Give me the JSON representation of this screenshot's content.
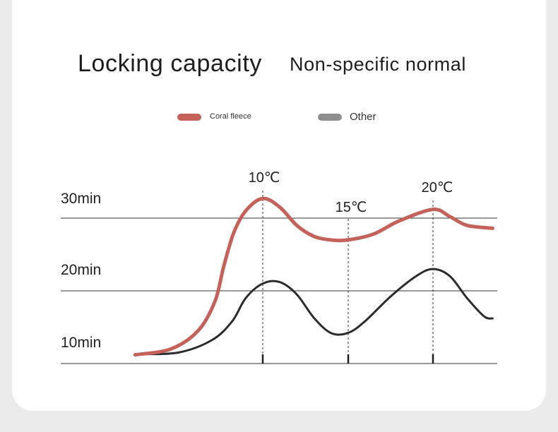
{
  "header": {
    "title": "Locking capacity",
    "subtitle": "Non-specific normal"
  },
  "colors": {
    "coral": "#c4615a",
    "other_legend": "#8e8e8e",
    "other_line": "#2b2b2e",
    "grid": "#333333"
  },
  "chart_data": {
    "type": "line",
    "title": "Locking capacity",
    "subtitle": "Non-specific normal",
    "xlabel": "",
    "ylabel": "",
    "x_tick_labels": [
      "10℃",
      "15℃",
      "20℃"
    ],
    "y_tick_labels": [
      "30min",
      "20min",
      "10min"
    ],
    "y_ticks": [
      30,
      20,
      10
    ],
    "legend": {
      "placement": "top-center"
    },
    "series": [
      {
        "name": "Coral fleece",
        "color": "#c4615a",
        "points": [
          [
            2.5,
            11.2
          ],
          [
            4.6,
            12.0
          ],
          [
            6.2,
            14.5
          ],
          [
            7.2,
            18.6
          ],
          [
            7.7,
            23.3
          ],
          [
            8.3,
            28.0
          ],
          [
            9.0,
            31.0
          ],
          [
            10.0,
            32.7
          ],
          [
            11.0,
            31.5
          ],
          [
            12.0,
            29.0
          ],
          [
            13.0,
            27.5
          ],
          [
            14.0,
            27.0
          ],
          [
            15.0,
            27.0
          ],
          [
            16.5,
            27.8
          ],
          [
            18.0,
            29.6
          ],
          [
            20.0,
            31.2
          ],
          [
            21.0,
            30.2
          ],
          [
            22.0,
            29.0
          ],
          [
            23.5,
            28.6
          ]
        ]
      },
      {
        "name": "Other",
        "color": "#2b2b2e",
        "points": [
          [
            2.5,
            11.3
          ],
          [
            5.0,
            11.5
          ],
          [
            7.0,
            13.2
          ],
          [
            8.2,
            15.8
          ],
          [
            9.0,
            19.0
          ],
          [
            10.0,
            21.0
          ],
          [
            11.0,
            21.2
          ],
          [
            12.0,
            19.5
          ],
          [
            13.0,
            16.3
          ],
          [
            14.0,
            14.2
          ],
          [
            15.0,
            14.2
          ],
          [
            16.0,
            15.8
          ],
          [
            17.5,
            19.2
          ],
          [
            19.0,
            22.0
          ],
          [
            20.0,
            23.0
          ],
          [
            21.0,
            22.0
          ],
          [
            22.0,
            19.0
          ],
          [
            23.0,
            16.5
          ],
          [
            23.5,
            16.2
          ]
        ]
      }
    ],
    "x_range": [
      2.5,
      23.5
    ],
    "y_range": [
      10,
      30
    ],
    "grid": true
  }
}
